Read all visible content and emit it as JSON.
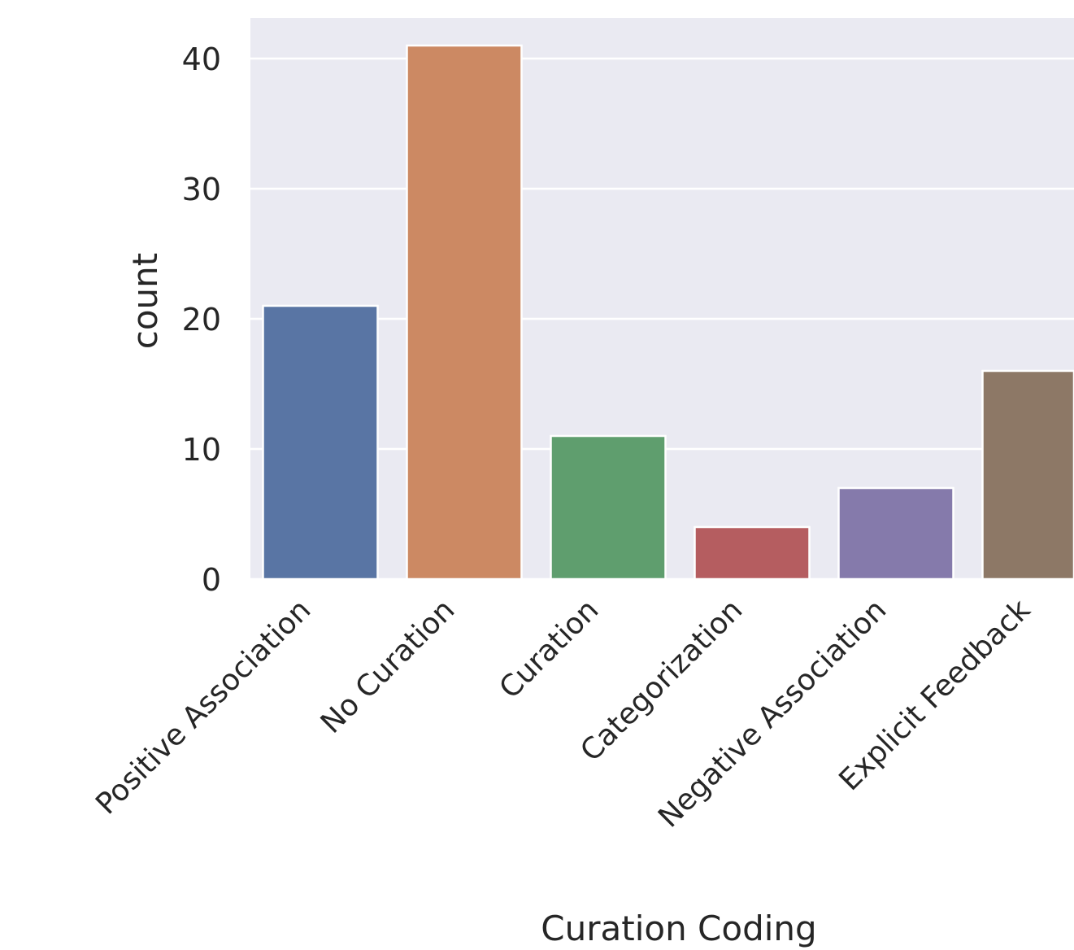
{
  "chart_data": {
    "type": "bar",
    "title": "",
    "xlabel": "Curation Coding",
    "ylabel": "count",
    "categories": [
      "Positive Association",
      "No Curation",
      "Curation",
      "Categorization",
      "Negative Association",
      "Explicit Feedback"
    ],
    "values": [
      21,
      41,
      11,
      4,
      7,
      16
    ],
    "colors": [
      "#5975a4",
      "#cc8963",
      "#5f9e6e",
      "#b55d60",
      "#857aab",
      "#8d7866"
    ],
    "yticks": [
      0,
      10,
      20,
      30,
      40
    ],
    "ylim": [
      0,
      43
    ],
    "grid": true,
    "background": "#eaeaf2",
    "legend": "none"
  }
}
